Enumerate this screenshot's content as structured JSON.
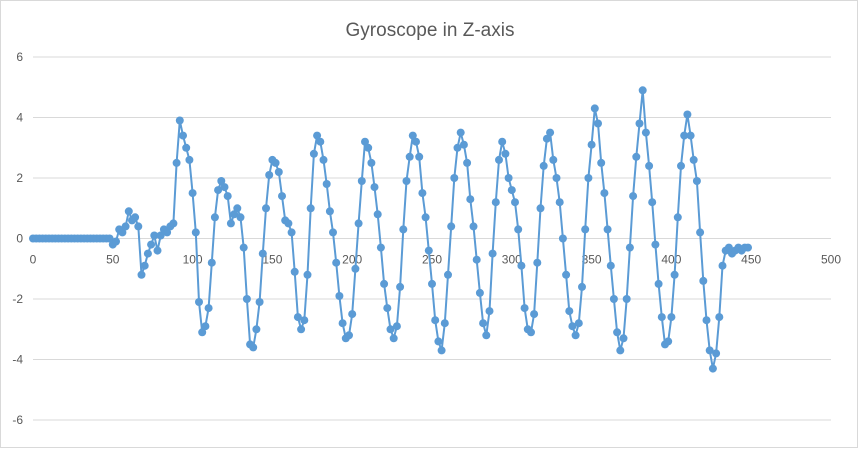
{
  "chart_data": {
    "type": "scatter",
    "title": "Gyroscope in Z-axis",
    "xlabel": "",
    "ylabel": "",
    "xlim": [
      0,
      500
    ],
    "ylim": [
      -6,
      6
    ],
    "x_ticks": [
      0,
      50,
      100,
      150,
      200,
      250,
      300,
      350,
      400,
      450,
      500
    ],
    "y_ticks": [
      6,
      4,
      2,
      0,
      -2,
      -4,
      -6
    ],
    "grid": true,
    "legend": "none",
    "colors": {
      "series": "#5b9bd5",
      "grid": "#d9d9d9",
      "text": "#595959"
    },
    "series": [
      {
        "style": "line-with-markers",
        "x": [
          0,
          2,
          4,
          6,
          8,
          10,
          12,
          14,
          16,
          18,
          20,
          22,
          24,
          26,
          28,
          30,
          32,
          34,
          36,
          38,
          40,
          42,
          44,
          46,
          48,
          50,
          52,
          54,
          56,
          58,
          60,
          62,
          64,
          66,
          68,
          70,
          72,
          74,
          76,
          78,
          80,
          82,
          84,
          86,
          88,
          90,
          92,
          94,
          96,
          98,
          100,
          102,
          104,
          106,
          108,
          110,
          112,
          114,
          116,
          118,
          120,
          122,
          124,
          126,
          128,
          130,
          132,
          134,
          136,
          138,
          140,
          142,
          144,
          146,
          148,
          150,
          152,
          154,
          156,
          158,
          160,
          162,
          164,
          166,
          168,
          170,
          172,
          174,
          176,
          178,
          180,
          182,
          184,
          186,
          188,
          190,
          192,
          194,
          196,
          198,
          200,
          202,
          204,
          206,
          208,
          210,
          212,
          214,
          216,
          218,
          220,
          222,
          224,
          226,
          228,
          230,
          232,
          234,
          236,
          238,
          240,
          242,
          244,
          246,
          248,
          250,
          252,
          254,
          256,
          258,
          260,
          262,
          264,
          266,
          268,
          270,
          272,
          274,
          276,
          278,
          280,
          282,
          284,
          286,
          288,
          290,
          292,
          294,
          296,
          298,
          300,
          302,
          304,
          306,
          308,
          310,
          312,
          314,
          316,
          318,
          320,
          322,
          324,
          326,
          328,
          330,
          332,
          334,
          336,
          338,
          340,
          342,
          344,
          346,
          348,
          350,
          352,
          354,
          356,
          358,
          360,
          362,
          364,
          366,
          368,
          370,
          372,
          374,
          376,
          378,
          380,
          382,
          384,
          386,
          388,
          390,
          392,
          394,
          396,
          398,
          400,
          402,
          404,
          406,
          408,
          410,
          412,
          414,
          416,
          418,
          420,
          422,
          424,
          426,
          428,
          430,
          432,
          434,
          436,
          438,
          440,
          442,
          444,
          446,
          448
        ],
        "y": [
          0,
          0,
          0,
          0,
          0,
          0,
          0,
          0,
          0,
          0,
          0,
          0,
          0,
          0,
          0,
          0,
          0,
          0,
          0,
          0,
          0,
          0,
          0,
          0,
          0,
          -0.2,
          -0.1,
          0.3,
          0.2,
          0.4,
          0.9,
          0.6,
          0.7,
          0.4,
          -1.2,
          -0.9,
          -0.5,
          -0.2,
          0.1,
          -0.4,
          0.1,
          0.3,
          0.2,
          0.4,
          0.5,
          2.5,
          3.9,
          3.4,
          3.0,
          2.6,
          1.5,
          0.2,
          -2.1,
          -3.1,
          -2.9,
          -2.3,
          -0.8,
          0.7,
          1.6,
          1.9,
          1.7,
          1.4,
          0.5,
          0.8,
          1.0,
          0.7,
          -0.3,
          -2.0,
          -3.5,
          -3.6,
          -3.0,
          -2.1,
          -0.5,
          1.0,
          2.1,
          2.6,
          2.5,
          2.2,
          1.4,
          0.6,
          0.5,
          0.2,
          -1.1,
          -2.6,
          -3.0,
          -2.7,
          -1.2,
          1.0,
          2.8,
          3.4,
          3.2,
          2.6,
          1.8,
          0.9,
          0.2,
          -0.8,
          -1.9,
          -2.8,
          -3.3,
          -3.2,
          -2.5,
          -1.0,
          0.5,
          1.9,
          3.2,
          3.0,
          2.5,
          1.7,
          0.8,
          -0.3,
          -1.5,
          -2.3,
          -3.0,
          -3.3,
          -2.9,
          -1.6,
          0.3,
          1.9,
          2.7,
          3.4,
          3.2,
          2.7,
          1.5,
          0.7,
          -0.4,
          -1.5,
          -2.7,
          -3.4,
          -3.7,
          -2.8,
          -1.2,
          0.4,
          2.0,
          3.0,
          3.5,
          3.1,
          2.5,
          1.3,
          0.4,
          -0.7,
          -1.8,
          -2.8,
          -3.2,
          -2.4,
          -0.5,
          1.2,
          2.6,
          3.2,
          2.8,
          2.0,
          1.6,
          1.2,
          0.3,
          -0.9,
          -2.3,
          -3.0,
          -3.1,
          -2.5,
          -0.8,
          1.0,
          2.4,
          3.3,
          3.5,
          2.6,
          2.0,
          1.2,
          0.0,
          -1.2,
          -2.4,
          -2.9,
          -3.2,
          -2.8,
          -1.6,
          0.3,
          2.0,
          3.1,
          4.3,
          3.8,
          2.5,
          1.5,
          0.3,
          -0.9,
          -2.0,
          -3.1,
          -3.7,
          -3.3,
          -2.0,
          -0.3,
          1.4,
          2.7,
          3.8,
          4.9,
          3.5,
          2.4,
          1.2,
          -0.2,
          -1.5,
          -2.6,
          -3.5,
          -3.4,
          -2.6,
          -1.2,
          0.7,
          2.4,
          3.4,
          4.1,
          3.4,
          2.6,
          1.9,
          0.2,
          -1.4,
          -2.7,
          -3.7,
          -4.3,
          -3.8,
          -2.6,
          -0.9,
          -0.4,
          -0.3,
          -0.5,
          -0.4,
          -0.3,
          -0.4,
          -0.3,
          -0.3
        ]
      }
    ]
  }
}
